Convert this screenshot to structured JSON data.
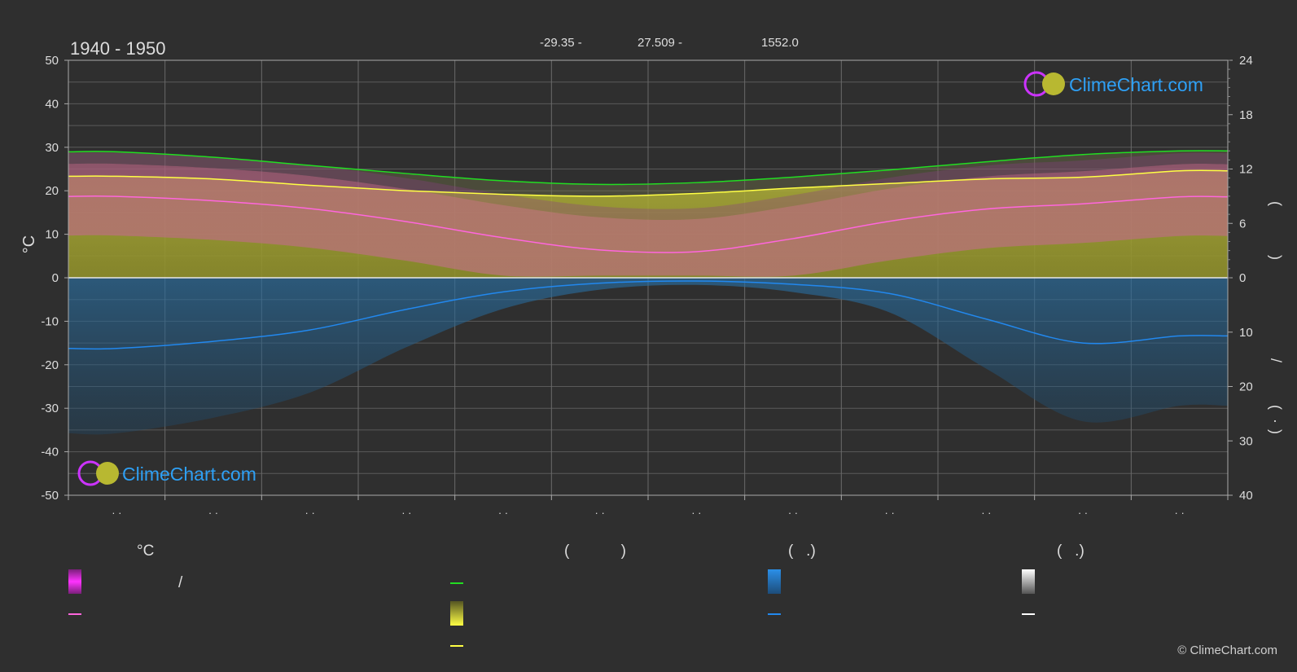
{
  "title": "1940 - 1950",
  "header": {
    "lat": "-29.35 -",
    "lon": "27.509 -",
    "elev": "1552.0"
  },
  "brand": "ClimeChart.com",
  "copyright": "© ClimeChart.com",
  "colors": {
    "background": "#2f2f2f",
    "sunshine_line": "#22dd22",
    "daylight_line": "#22dd22",
    "temp_max_line": "#ffff44",
    "temp_mean_line": "#ff66dd",
    "precip_line": "#2288ee",
    "sunshine_fill": "#9e9e2e",
    "temp_fill": "#cc6699",
    "precip_fill": "#1f5f8f",
    "brand_blue": "#2ea0f5"
  },
  "chart_data": {
    "type": "line",
    "title": "1940 - 1950",
    "xlabel": "",
    "ylabel": "°C",
    "ylim": [
      -50,
      50
    ],
    "yticks": [
      -50,
      -40,
      -30,
      -20,
      -10,
      0,
      10,
      20,
      30,
      40,
      50
    ],
    "y2_top_range": [
      0,
      24
    ],
    "y2_top_ticks": [
      0,
      6,
      12,
      18,
      24
    ],
    "y2_bottom_range": [
      0,
      40
    ],
    "y2_bottom_ticks": [
      10,
      20,
      30,
      40
    ],
    "x": [
      0.5,
      1.5,
      2.5,
      3.5,
      4.5,
      5.5,
      6.5,
      7.5,
      8.5,
      9.5,
      10.5,
      11.5
    ],
    "month_labels": [
      "· ·",
      "· ·",
      "· ·",
      "· ·",
      "· ·",
      "· ·",
      "· ·",
      "· ·",
      "· ·",
      "· ·",
      "· ·",
      "· ·"
    ],
    "series": [
      {
        "key": "daylight",
        "values": [
          13.9,
          13.3,
          12.4,
          11.5,
          10.7,
          10.3,
          10.5,
          11.1,
          11.9,
          12.8,
          13.6,
          14.0
        ]
      },
      {
        "key": "sunshine",
        "values": [
          11.2,
          10.9,
          10.2,
          9.6,
          9.2,
          9.0,
          9.3,
          9.9,
          10.4,
          10.9,
          11.1,
          11.8
        ]
      },
      {
        "key": "temp_mean",
        "values": [
          18.7,
          17.7,
          15.9,
          12.9,
          9.2,
          6.4,
          6.0,
          9.0,
          13.0,
          15.8,
          17.0,
          18.6
        ]
      },
      {
        "key": "precip_mm",
        "values": [
          13.0,
          11.7,
          9.6,
          5.8,
          2.6,
          1.0,
          0.6,
          1.2,
          2.9,
          7.6,
          12.0,
          10.7
        ]
      }
    ],
    "legend": {
      "temperature": {
        "head": "°C",
        "items": [
          "/",
          ""
        ]
      },
      "sun": {
        "head": "(            )",
        "items": [
          "",
          "",
          ""
        ]
      },
      "rain": {
        "head": "(   .)",
        "items": [
          "",
          ""
        ]
      },
      "snow": {
        "head": "(   .)",
        "items": [
          "",
          ""
        ]
      }
    },
    "right_axis_glyphs": [
      "(",
      ")",
      "/",
      "(",
      "·",
      ")"
    ]
  }
}
